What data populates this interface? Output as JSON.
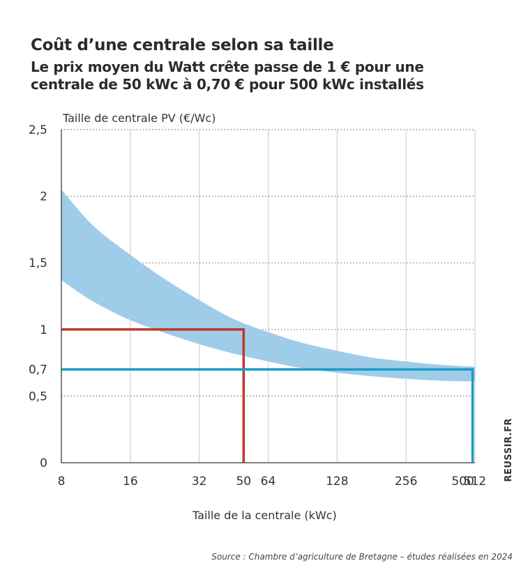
{
  "title": "Coût d’une centrale selon sa taille",
  "subtitle": "Le prix moyen du Watt crête passe de 1 € pour une centrale de 50 kWc à 0,70 € pour 500 kWc installés",
  "source": "Source : Chambre d’agriculture de Bretagne – études réalisées en 2024",
  "watermark": "REUSSIR.FR",
  "chart_data": {
    "type": "area",
    "ylabel": "Taille de centrale PV (€/Wc)",
    "xlabel": "Taille de la centrale (kWc)",
    "x_scale": "log2",
    "xlim": [
      8,
      512
    ],
    "ylim": [
      0,
      2.5
    ],
    "grid": true,
    "x_ticks": [
      {
        "value": 8,
        "label": "8"
      },
      {
        "value": 16,
        "label": "16"
      },
      {
        "value": 32,
        "label": "32"
      },
      {
        "value": 64,
        "label": "64"
      },
      {
        "value": 128,
        "label": "128"
      },
      {
        "value": 256,
        "label": "256"
      },
      {
        "value": 512,
        "label": "512"
      }
    ],
    "y_ticks": [
      {
        "value": 0,
        "label": "0"
      },
      {
        "value": 0.5,
        "label": "0,5"
      },
      {
        "value": 1,
        "label": "1"
      },
      {
        "value": 1.5,
        "label": "1,5"
      },
      {
        "value": 2,
        "label": "2"
      },
      {
        "value": 2.5,
        "label": "2,5"
      }
    ],
    "band": {
      "color": "#9fcce9",
      "upper": [
        {
          "x": 8,
          "y": 2.05
        },
        {
          "x": 11,
          "y": 1.78
        },
        {
          "x": 16,
          "y": 1.56
        },
        {
          "x": 23,
          "y": 1.37
        },
        {
          "x": 32,
          "y": 1.22
        },
        {
          "x": 45,
          "y": 1.08
        },
        {
          "x": 64,
          "y": 0.98
        },
        {
          "x": 90,
          "y": 0.9
        },
        {
          "x": 128,
          "y": 0.84
        },
        {
          "x": 180,
          "y": 0.79
        },
        {
          "x": 256,
          "y": 0.76
        },
        {
          "x": 362,
          "y": 0.735
        },
        {
          "x": 512,
          "y": 0.72
        }
      ],
      "lower": [
        {
          "x": 8,
          "y": 1.37
        },
        {
          "x": 11,
          "y": 1.21
        },
        {
          "x": 16,
          "y": 1.07
        },
        {
          "x": 23,
          "y": 0.97
        },
        {
          "x": 32,
          "y": 0.89
        },
        {
          "x": 45,
          "y": 0.82
        },
        {
          "x": 64,
          "y": 0.76
        },
        {
          "x": 90,
          "y": 0.71
        },
        {
          "x": 128,
          "y": 0.675
        },
        {
          "x": 180,
          "y": 0.65
        },
        {
          "x": 256,
          "y": 0.63
        },
        {
          "x": 362,
          "y": 0.615
        },
        {
          "x": 512,
          "y": 0.61
        }
      ]
    },
    "markers": [
      {
        "x": 50,
        "x_label": "50",
        "y": 1,
        "y_label": "1",
        "color": "#c0392b"
      },
      {
        "x": 500,
        "x_label": "500",
        "y": 0.7,
        "y_label": "0,7",
        "color": "#1a9bc7"
      }
    ]
  }
}
